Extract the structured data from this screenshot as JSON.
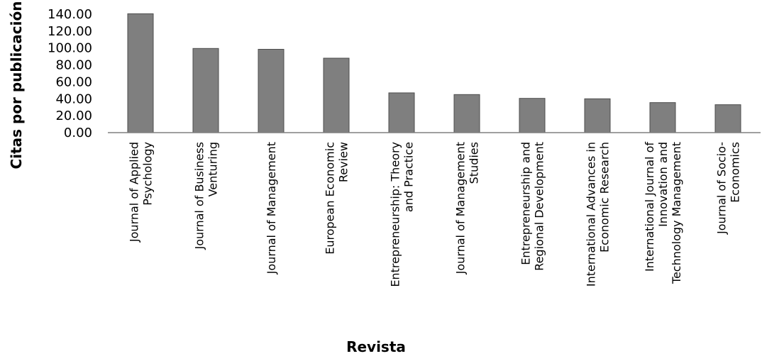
{
  "chart_data": {
    "type": "bar",
    "title": "",
    "xlabel": "Revista",
    "ylabel": "Citas por publicación",
    "ylim": [
      0,
      140
    ],
    "yticks": [
      "0.00",
      "20.00",
      "40.00",
      "60.00",
      "80.00",
      "100.00",
      "120.00",
      "140.00"
    ],
    "grid": false,
    "legend": "none",
    "bar_color": "#7f7f7f",
    "categories": [
      [
        "Journal of Applied",
        "Psychology"
      ],
      [
        "Journal of Business",
        "Venturing"
      ],
      [
        "Journal of Management"
      ],
      [
        "European Economic",
        "Review"
      ],
      [
        "Entrepreneurship: Theory",
        "and Practice"
      ],
      [
        "Journal of Management",
        "Studies"
      ],
      [
        "Entrepreneurship and",
        "Regional Development"
      ],
      [
        "International Advances in",
        "Economic Research"
      ],
      [
        "International Journal of",
        "Innovation and",
        "Technology Management"
      ],
      [
        "Journal of Socio-",
        "Economics"
      ]
    ],
    "values": [
      140.5,
      99.5,
      98.5,
      88.0,
      47.0,
      45.0,
      40.5,
      40.0,
      35.5,
      33.0
    ]
  }
}
